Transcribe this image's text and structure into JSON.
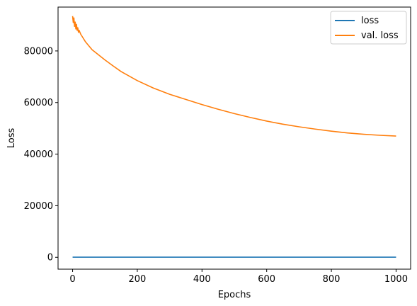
{
  "chart_data": {
    "type": "line",
    "title": "",
    "xlabel": "Epochs",
    "ylabel": "Loss",
    "xlim": [
      -45,
      1045
    ],
    "ylim": [
      -4600,
      97000
    ],
    "x_ticks": [
      0,
      200,
      400,
      600,
      800,
      1000
    ],
    "y_ticks": [
      0,
      20000,
      40000,
      60000,
      80000
    ],
    "x_tick_labels": [
      "0",
      "200",
      "400",
      "600",
      "800",
      "1000"
    ],
    "y_tick_labels": [
      "0",
      "20000",
      "40000",
      "60000",
      "80000"
    ],
    "legend_position": "top-right",
    "grid": false,
    "series": [
      {
        "name": "loss",
        "color": "#1f77b4",
        "x": [
          0,
          100,
          200,
          300,
          400,
          500,
          600,
          700,
          800,
          900,
          1000
        ],
        "y": [
          50,
          50,
          50,
          50,
          50,
          50,
          50,
          50,
          50,
          50,
          50
        ]
      },
      {
        "name": "val. loss",
        "color": "#ff7f0e",
        "x": [
          0,
          2,
          4,
          6,
          8,
          10,
          12,
          14,
          16,
          18,
          20,
          25,
          30,
          40,
          50,
          60,
          80,
          100,
          125,
          150,
          200,
          250,
          300,
          350,
          400,
          450,
          500,
          550,
          600,
          650,
          700,
          750,
          800,
          850,
          900,
          950,
          1000
        ],
        "y": [
          93500,
          91000,
          92800,
          89500,
          91200,
          88500,
          90300,
          88000,
          89000,
          87200,
          88000,
          86500,
          85500,
          83500,
          82000,
          80500,
          78500,
          76500,
          74200,
          72000,
          68500,
          65600,
          63200,
          61200,
          59200,
          57400,
          55700,
          54200,
          52800,
          51600,
          50600,
          49700,
          48900,
          48200,
          47700,
          47300,
          47000
        ]
      }
    ]
  }
}
